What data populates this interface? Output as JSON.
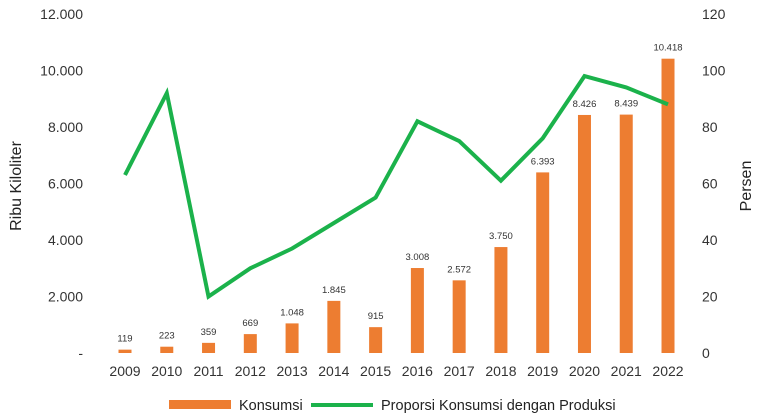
{
  "chart_data": {
    "type": "bar",
    "categories": [
      "2009",
      "2010",
      "2011",
      "2012",
      "2013",
      "2014",
      "2015",
      "2016",
      "2017",
      "2018",
      "2019",
      "2020",
      "2021",
      "2022"
    ],
    "series": [
      {
        "name": "Konsumsi",
        "type": "bar",
        "axis": "left",
        "color": "#ED7D31",
        "values": [
          119,
          223,
          359,
          669,
          1048,
          1845,
          915,
          3008,
          2572,
          3750,
          6393,
          8426,
          8439,
          10418
        ],
        "labels": [
          "119",
          "223",
          "359",
          "669",
          "1.048",
          "1.845",
          "915",
          "3.008",
          "2.572",
          "3.750",
          "6.393",
          "8.426",
          "8.439",
          "10.418"
        ]
      },
      {
        "name": "Proporsi Konsumsi dengan Produksi",
        "type": "line",
        "axis": "right",
        "color": "#1BB24B",
        "values": [
          63,
          92,
          20,
          30,
          37,
          46,
          55,
          82,
          75,
          61,
          76,
          98,
          94,
          88
        ]
      }
    ],
    "y_left": {
      "label": "Ribu Kiloliter",
      "range": [
        0,
        12000
      ],
      "ticks": [
        0,
        2000,
        4000,
        6000,
        8000,
        10000,
        12000
      ],
      "tick_labels": [
        "-",
        "2.000",
        "4.000",
        "6.000",
        "8.000",
        "10.000",
        "12.000"
      ]
    },
    "y_right": {
      "label": "Persen",
      "range": [
        0,
        120
      ],
      "ticks": [
        0,
        20,
        40,
        60,
        80,
        100,
        120
      ],
      "tick_labels": [
        "0",
        "20",
        "40",
        "60",
        "80",
        "100",
        "120"
      ]
    },
    "grid": false,
    "legend_position": "bottom"
  }
}
